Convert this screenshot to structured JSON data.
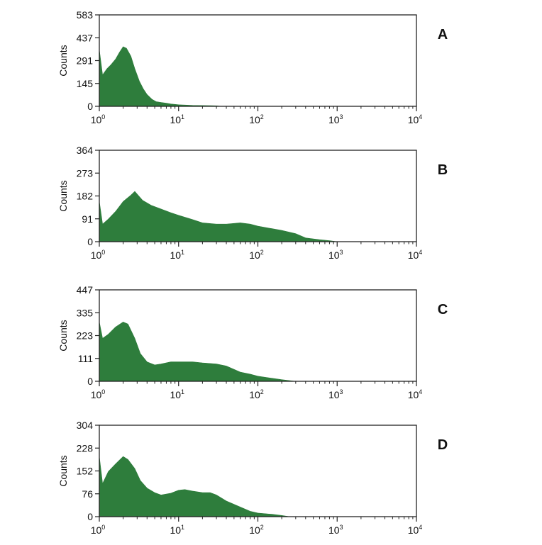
{
  "chart_data": [
    {
      "type": "area",
      "panel_label": "A",
      "ylabel": "Counts",
      "xscale": "log",
      "xlim": [
        1,
        10000
      ],
      "ylim": [
        0,
        583
      ],
      "yticks": [
        "0",
        "145",
        "291",
        "437",
        "583"
      ],
      "xticks": [
        {
          "base": "10",
          "exp": "0"
        },
        {
          "base": "10",
          "exp": "1"
        },
        {
          "base": "10",
          "exp": "2"
        },
        {
          "base": "10",
          "exp": "3"
        },
        {
          "base": "10",
          "exp": "4"
        }
      ],
      "fill_color": "#2e7d3c",
      "x": [
        1.0,
        1.1,
        1.25,
        1.4,
        1.6,
        1.8,
        2.0,
        2.2,
        2.5,
        2.8,
        3.2,
        3.6,
        4.0,
        4.6,
        5.2,
        6.0,
        7.0,
        8.0,
        10.0,
        12.0,
        15.0,
        20.0,
        25.0,
        30.0,
        35.0
      ],
      "y": [
        360,
        200,
        240,
        265,
        300,
        345,
        380,
        370,
        320,
        240,
        160,
        110,
        75,
        45,
        30,
        25,
        20,
        15,
        10,
        8,
        6,
        5,
        4,
        3,
        0
      ]
    },
    {
      "type": "area",
      "panel_label": "B",
      "ylabel": "Counts",
      "xscale": "log",
      "xlim": [
        1,
        10000
      ],
      "ylim": [
        0,
        364
      ],
      "yticks": [
        "0",
        "91",
        "182",
        "273",
        "364"
      ],
      "xticks": [
        {
          "base": "10",
          "exp": "0"
        },
        {
          "base": "10",
          "exp": "1"
        },
        {
          "base": "10",
          "exp": "2"
        },
        {
          "base": "10",
          "exp": "3"
        },
        {
          "base": "10",
          "exp": "4"
        }
      ],
      "fill_color": "#2e7d3c",
      "x": [
        1.0,
        1.1,
        1.3,
        1.6,
        2.0,
        2.5,
        2.8,
        3.5,
        4.5,
        6.0,
        8.0,
        10.0,
        15.0,
        20.0,
        30.0,
        40.0,
        60.0,
        80.0,
        100.0,
        150.0,
        200.0,
        300.0,
        400.0,
        600.0,
        800.0,
        1000.0
      ],
      "y": [
        160,
        70,
        90,
        120,
        160,
        185,
        200,
        165,
        145,
        130,
        115,
        105,
        88,
        75,
        70,
        70,
        75,
        70,
        62,
        52,
        45,
        32,
        15,
        8,
        4,
        0
      ]
    },
    {
      "type": "area",
      "panel_label": "C",
      "ylabel": "Counts",
      "xscale": "log",
      "xlim": [
        1,
        10000
      ],
      "ylim": [
        0,
        447
      ],
      "yticks": [
        "0",
        "111",
        "223",
        "335",
        "447"
      ],
      "xticks": [
        {
          "base": "10",
          "exp": "0"
        },
        {
          "base": "10",
          "exp": "1"
        },
        {
          "base": "10",
          "exp": "2"
        },
        {
          "base": "10",
          "exp": "3"
        },
        {
          "base": "10",
          "exp": "4"
        }
      ],
      "fill_color": "#2e7d3c",
      "x": [
        1.0,
        1.1,
        1.3,
        1.6,
        2.0,
        2.3,
        2.8,
        3.3,
        4.0,
        5.0,
        6.0,
        8.0,
        10.0,
        15.0,
        20.0,
        30.0,
        40.0,
        60.0,
        80.0,
        100.0,
        150.0,
        200.0,
        300.0
      ],
      "y": [
        290,
        210,
        230,
        265,
        290,
        280,
        210,
        135,
        95,
        80,
        85,
        95,
        95,
        95,
        90,
        85,
        75,
        45,
        35,
        25,
        15,
        8,
        0
      ]
    },
    {
      "type": "area",
      "panel_label": "D",
      "ylabel": "Counts",
      "xscale": "log",
      "xlim": [
        1,
        10000
      ],
      "ylim": [
        0,
        304
      ],
      "yticks": [
        "0",
        "76",
        "152",
        "228",
        "304"
      ],
      "xticks": [
        {
          "base": "10",
          "exp": "0"
        },
        {
          "base": "10",
          "exp": "1"
        },
        {
          "base": "10",
          "exp": "2"
        },
        {
          "base": "10",
          "exp": "3"
        },
        {
          "base": "10",
          "exp": "4"
        }
      ],
      "fill_color": "#2e7d3c",
      "x": [
        1.0,
        1.1,
        1.3,
        1.6,
        2.0,
        2.3,
        2.8,
        3.3,
        4.0,
        5.0,
        6.0,
        8.0,
        10.0,
        12.0,
        15.0,
        20.0,
        25.0,
        30.0,
        40.0,
        60.0,
        80.0,
        100.0,
        150.0,
        200.0,
        250.0
      ],
      "y": [
        200,
        110,
        150,
        175,
        200,
        190,
        160,
        120,
        95,
        80,
        72,
        78,
        88,
        90,
        85,
        80,
        80,
        72,
        52,
        32,
        18,
        12,
        8,
        4,
        0
      ]
    }
  ]
}
